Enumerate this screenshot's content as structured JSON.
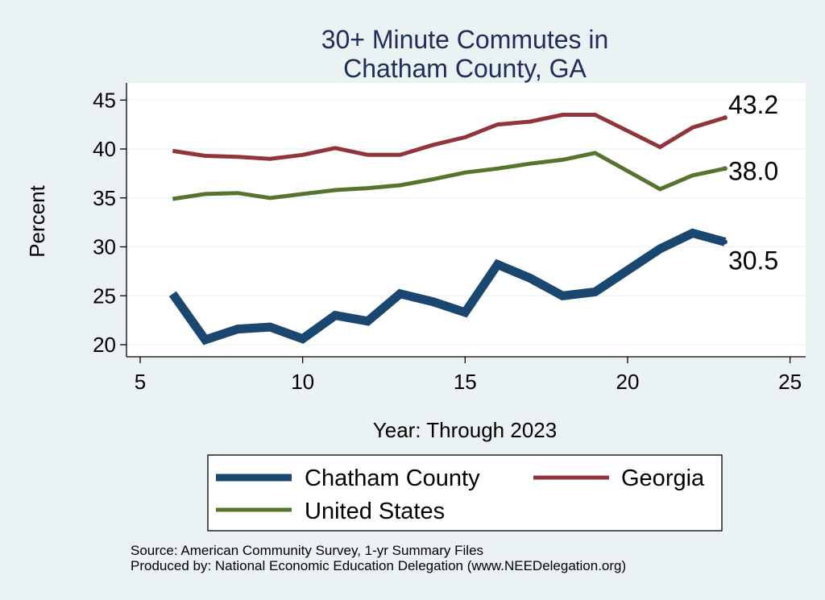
{
  "chart_data": {
    "type": "line",
    "title_lines": [
      "30+ Minute Commutes in",
      "Chatham County, GA"
    ],
    "xlabel": "Year: Through 2023",
    "ylabel": "Percent",
    "xlim": [
      5,
      25
    ],
    "ylim": [
      19,
      46
    ],
    "xticks": [
      5,
      10,
      15,
      20,
      25
    ],
    "yticks": [
      20,
      25,
      30,
      35,
      40,
      45
    ],
    "x": [
      6,
      7,
      8,
      9,
      10,
      11,
      12,
      13,
      14,
      15,
      16,
      17,
      18,
      19,
      21,
      22,
      23
    ],
    "series": [
      {
        "name": "Georgia",
        "color": "#90353b",
        "values": [
          39.8,
          39.3,
          39.2,
          39.0,
          39.4,
          40.1,
          39.4,
          39.4,
          40.4,
          41.2,
          42.5,
          42.8,
          43.5,
          43.5,
          40.2,
          42.2,
          43.2
        ],
        "end_label": "43.2"
      },
      {
        "name": "United States",
        "color": "#55752f",
        "values": [
          34.9,
          35.4,
          35.5,
          35.0,
          35.4,
          35.8,
          36.0,
          36.3,
          36.9,
          37.6,
          38.0,
          38.5,
          38.9,
          39.6,
          35.9,
          37.3,
          38.0
        ],
        "end_label": "38.0"
      },
      {
        "name": "Chatham County",
        "color": "#1a476f",
        "values": [
          25.2,
          20.5,
          21.6,
          21.8,
          20.6,
          23.0,
          22.4,
          25.2,
          24.4,
          23.3,
          28.2,
          26.8,
          25.0,
          25.4,
          29.8,
          31.4,
          30.5
        ],
        "end_label": "30.5"
      }
    ],
    "legend": [
      {
        "label": "Chatham County",
        "color": "#1a476f"
      },
      {
        "label": "Georgia",
        "color": "#90353b"
      },
      {
        "label": "United States",
        "color": "#55752f"
      }
    ],
    "notes": [
      "Source: American Community Survey, 1-yr Summary Files",
      "Produced by: National Economic Education Delegation (www.NEEDelegation.org)"
    ]
  }
}
